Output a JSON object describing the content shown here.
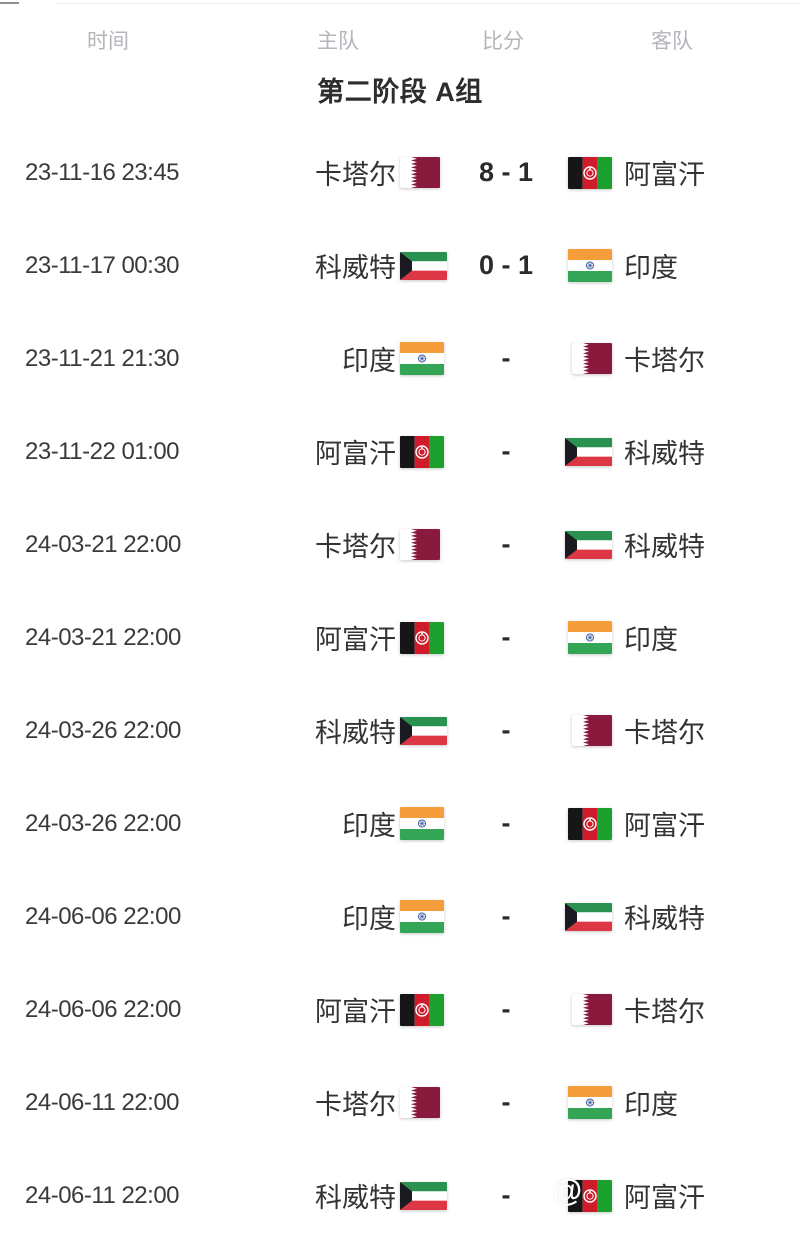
{
  "page": {
    "background": "#ffffff"
  },
  "table": {
    "columns": [
      {
        "key": "time",
        "label": "时间"
      },
      {
        "key": "home",
        "label": "主队"
      },
      {
        "key": "score",
        "label": "比分"
      },
      {
        "key": "away",
        "label": "客队"
      }
    ],
    "group_title": "第二阶段 A组"
  },
  "flag_colors": {
    "qatar": {
      "maroon": "#8a1a3d",
      "white": "#ffffff"
    },
    "afghanistan": {
      "black": "#161616",
      "red": "#cf1b2b",
      "green": "#1ca12e",
      "emblem": "#ffffff"
    },
    "kuwait": {
      "green": "#2a9150",
      "white": "#ffffff",
      "red": "#dd3745",
      "black": "#1a1b20"
    },
    "india": {
      "saffron": "#f69d3b",
      "white": "#ffffff",
      "green": "#34a457",
      "navy": "#3b5aa0"
    }
  },
  "matches": [
    {
      "time": "23-11-16 23:45",
      "home_team": "卡塔尔",
      "home_flag": "qatar",
      "score": "8 - 1",
      "away_team": "阿富汗",
      "away_flag": "afghanistan"
    },
    {
      "time": "23-11-17 00:30",
      "home_team": "科威特",
      "home_flag": "kuwait",
      "score": "0 - 1",
      "away_team": "印度",
      "away_flag": "india"
    },
    {
      "time": "23-11-21 21:30",
      "home_team": "印度",
      "home_flag": "india",
      "score": "-",
      "away_team": "卡塔尔",
      "away_flag": "qatar"
    },
    {
      "time": "23-11-22 01:00",
      "home_team": "阿富汗",
      "home_flag": "afghanistan",
      "score": "-",
      "away_team": "科威特",
      "away_flag": "kuwait"
    },
    {
      "time": "24-03-21 22:00",
      "home_team": "卡塔尔",
      "home_flag": "qatar",
      "score": "-",
      "away_team": "科威特",
      "away_flag": "kuwait"
    },
    {
      "time": "24-03-21 22:00",
      "home_team": "阿富汗",
      "home_flag": "afghanistan",
      "score": "-",
      "away_team": "印度",
      "away_flag": "india"
    },
    {
      "time": "24-03-26 22:00",
      "home_team": "科威特",
      "home_flag": "kuwait",
      "score": "-",
      "away_team": "卡塔尔",
      "away_flag": "qatar"
    },
    {
      "time": "24-03-26 22:00",
      "home_team": "印度",
      "home_flag": "india",
      "score": "-",
      "away_team": "阿富汗",
      "away_flag": "afghanistan"
    },
    {
      "time": "24-06-06 22:00",
      "home_team": "印度",
      "home_flag": "india",
      "score": "-",
      "away_team": "科威特",
      "away_flag": "kuwait"
    },
    {
      "time": "24-06-06 22:00",
      "home_team": "阿富汗",
      "home_flag": "afghanistan",
      "score": "-",
      "away_team": "卡塔尔",
      "away_flag": "qatar"
    },
    {
      "time": "24-06-11 22:00",
      "home_team": "卡塔尔",
      "home_flag": "qatar",
      "score": "-",
      "away_team": "印度",
      "away_flag": "india"
    },
    {
      "time": "24-06-11 22:00",
      "home_team": "科威特",
      "home_flag": "kuwait",
      "score": "-",
      "away_team": "阿富汗",
      "away_flag": "afghanistan",
      "watermark": "@"
    }
  ]
}
